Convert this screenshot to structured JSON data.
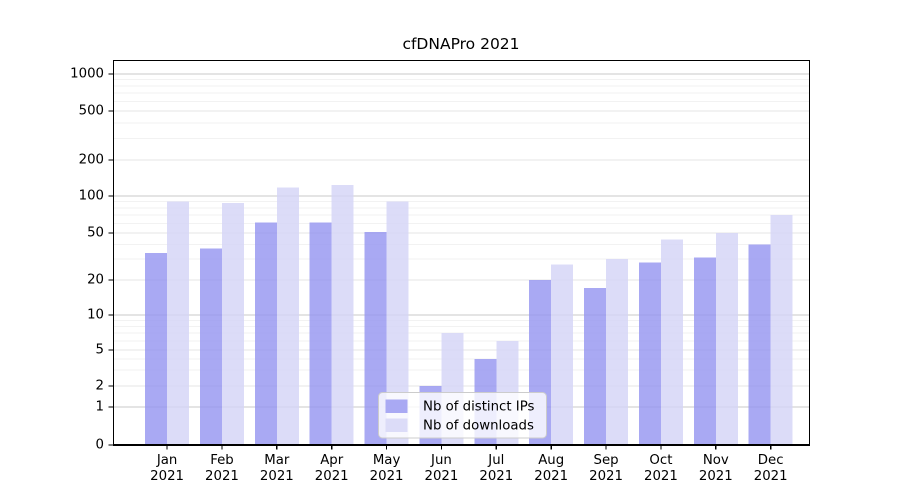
{
  "chart_data": {
    "type": "bar",
    "title": "cfDNAPro 2021",
    "categories": [
      "Jan",
      "Feb",
      "Mar",
      "Apr",
      "May",
      "Jun",
      "Jul",
      "Aug",
      "Sep",
      "Oct",
      "Nov",
      "Dec"
    ],
    "x_label_year": "2021",
    "series": [
      {
        "name": "Nb of distinct IPs",
        "color": "#9696f0",
        "legend_color": "#a9a9f3",
        "values": [
          34,
          37,
          61,
          61,
          51,
          2,
          4,
          20,
          17,
          28,
          31,
          40
        ]
      },
      {
        "name": "Nb of downloads",
        "color": "#d4d4f6",
        "legend_color": "#dcdcf8",
        "values": [
          90,
          88,
          118,
          123,
          90,
          7,
          6,
          27,
          30,
          44,
          50,
          70
        ]
      }
    ],
    "y_axis": {
      "scale": "log",
      "ticks": [
        1000,
        500,
        200,
        100,
        50,
        20,
        10,
        5,
        2,
        1,
        0
      ]
    },
    "legend": {
      "position": "lower-center"
    },
    "grid": true,
    "colors": {
      "grid_major": "#c9c9c9",
      "grid_labeled": "#e4e4e4",
      "grid_minor": "#f2f2f2",
      "axis": "#000000"
    }
  }
}
